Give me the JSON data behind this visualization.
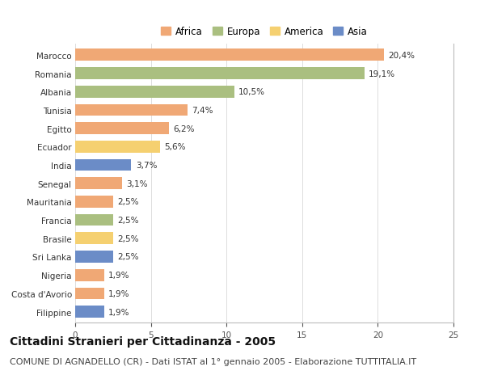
{
  "countries": [
    "Marocco",
    "Romania",
    "Albania",
    "Tunisia",
    "Egitto",
    "Ecuador",
    "India",
    "Senegal",
    "Mauritania",
    "Francia",
    "Brasile",
    "Sri Lanka",
    "Nigeria",
    "Costa d'Avorio",
    "Filippine"
  ],
  "values": [
    20.4,
    19.1,
    10.5,
    7.4,
    6.2,
    5.6,
    3.7,
    3.1,
    2.5,
    2.5,
    2.5,
    2.5,
    1.9,
    1.9,
    1.9
  ],
  "labels": [
    "20,4%",
    "19,1%",
    "10,5%",
    "7,4%",
    "6,2%",
    "5,6%",
    "3,7%",
    "3,1%",
    "2,5%",
    "2,5%",
    "2,5%",
    "2,5%",
    "1,9%",
    "1,9%",
    "1,9%"
  ],
  "continents": [
    "Africa",
    "Europa",
    "Europa",
    "Africa",
    "Africa",
    "America",
    "Asia",
    "Africa",
    "Africa",
    "Europa",
    "America",
    "Asia",
    "Africa",
    "Africa",
    "Asia"
  ],
  "continent_colors": {
    "Africa": "#F0A875",
    "Europa": "#AABF80",
    "America": "#F5D070",
    "Asia": "#6B8CC7"
  },
  "legend_order": [
    "Africa",
    "Europa",
    "America",
    "Asia"
  ],
  "xlim": [
    0,
    25
  ],
  "xticks": [
    0,
    5,
    10,
    15,
    20,
    25
  ],
  "title": "Cittadini Stranieri per Cittadinanza - 2005",
  "subtitle": "COMUNE DI AGNADELLO (CR) - Dati ISTAT al 1° gennaio 2005 - Elaborazione TUTTITALIA.IT",
  "bg_color": "#FFFFFF",
  "bar_height": 0.65,
  "title_fontsize": 10,
  "subtitle_fontsize": 8,
  "label_fontsize": 7.5,
  "tick_fontsize": 7.5,
  "legend_fontsize": 8.5
}
